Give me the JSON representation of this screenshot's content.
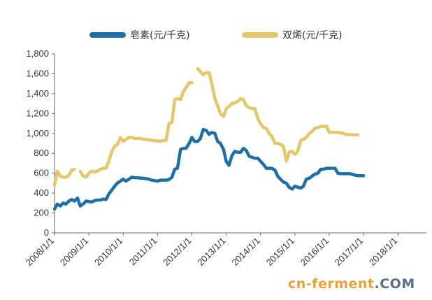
{
  "chart_data": {
    "type": "line",
    "legend_position": "top",
    "ylim": [
      0,
      1800
    ],
    "yticks": [
      "0",
      "200",
      "400",
      "600",
      "800",
      "1,000",
      "1,200",
      "1,400",
      "1,600",
      "1,800"
    ],
    "x_tick_labels": [
      "2008/1/1",
      "2009/1/1",
      "2010/1/1",
      "2011/1/1",
      "2012/1/1",
      "2013/1/1",
      "2014/1/1",
      "2015/1/1",
      "2016/1/1",
      "2017/1/1",
      "2018/1/1"
    ],
    "x_start": 2008.0,
    "x_end": 2018.83,
    "series": [
      {
        "name": "皂素(元/千克)",
        "color": "#1f6fa7",
        "points": [
          [
            2008.0,
            240
          ],
          [
            2008.08,
            290
          ],
          [
            2008.17,
            270
          ],
          [
            2008.25,
            300
          ],
          [
            2008.33,
            290
          ],
          [
            2008.42,
            320
          ],
          [
            2008.5,
            335
          ],
          [
            2008.58,
            320
          ],
          [
            2008.67,
            350
          ],
          [
            2008.75,
            270
          ],
          [
            2008.83,
            290
          ],
          [
            2008.92,
            320
          ],
          [
            2009.0,
            315
          ],
          [
            2009.08,
            310
          ],
          [
            2009.17,
            325
          ],
          [
            2009.25,
            330
          ],
          [
            2009.33,
            330
          ],
          [
            2009.42,
            340
          ],
          [
            2009.5,
            335
          ],
          [
            2009.58,
            390
          ],
          [
            2009.67,
            430
          ],
          [
            2009.75,
            470
          ],
          [
            2009.83,
            500
          ],
          [
            2009.92,
            520
          ],
          [
            2010.0,
            540
          ],
          [
            2010.08,
            520
          ],
          [
            2010.17,
            540
          ],
          [
            2010.25,
            560
          ],
          [
            2010.33,
            555
          ],
          [
            2010.42,
            555
          ],
          [
            2010.5,
            550
          ],
          [
            2010.58,
            550
          ],
          [
            2010.67,
            545
          ],
          [
            2010.75,
            540
          ],
          [
            2010.83,
            530
          ],
          [
            2010.92,
            525
          ],
          [
            2011.0,
            520
          ],
          [
            2011.08,
            530
          ],
          [
            2011.17,
            530
          ],
          [
            2011.25,
            530
          ],
          [
            2011.33,
            535
          ],
          [
            2011.42,
            560
          ],
          [
            2011.5,
            640
          ],
          [
            2011.58,
            650
          ],
          [
            2011.67,
            840
          ],
          [
            2011.75,
            850
          ],
          [
            2011.83,
            850
          ],
          [
            2011.92,
            900
          ],
          [
            2012.0,
            960
          ],
          [
            2012.08,
            920
          ],
          [
            2012.17,
            920
          ],
          [
            2012.25,
            950
          ],
          [
            2012.33,
            1040
          ],
          [
            2012.42,
            1030
          ],
          [
            2012.5,
            990
          ],
          [
            2012.58,
            1010
          ],
          [
            2012.67,
            1000
          ],
          [
            2012.75,
            920
          ],
          [
            2012.83,
            900
          ],
          [
            2012.92,
            840
          ],
          [
            2013.0,
            720
          ],
          [
            2013.08,
            680
          ],
          [
            2013.17,
            780
          ],
          [
            2013.25,
            820
          ],
          [
            2013.33,
            810
          ],
          [
            2013.42,
            810
          ],
          [
            2013.5,
            850
          ],
          [
            2013.58,
            830
          ],
          [
            2013.67,
            770
          ],
          [
            2013.75,
            760
          ],
          [
            2013.83,
            750
          ],
          [
            2013.92,
            750
          ],
          [
            2014.0,
            720
          ],
          [
            2014.08,
            690
          ],
          [
            2014.17,
            650
          ],
          [
            2014.25,
            650
          ],
          [
            2014.33,
            650
          ],
          [
            2014.42,
            630
          ],
          [
            2014.5,
            570
          ],
          [
            2014.58,
            540
          ],
          [
            2014.67,
            510
          ],
          [
            2014.75,
            500
          ],
          [
            2014.83,
            460
          ],
          [
            2014.92,
            440
          ],
          [
            2015.0,
            470
          ],
          [
            2015.08,
            460
          ],
          [
            2015.17,
            450
          ],
          [
            2015.25,
            470
          ],
          [
            2015.33,
            540
          ],
          [
            2015.42,
            550
          ],
          [
            2015.5,
            570
          ],
          [
            2015.58,
            590
          ],
          [
            2015.67,
            600
          ],
          [
            2015.75,
            640
          ],
          [
            2015.83,
            640
          ],
          [
            2015.92,
            650
          ],
          [
            2016.0,
            650
          ],
          [
            2016.08,
            650
          ],
          [
            2016.17,
            650
          ],
          [
            2016.25,
            600
          ],
          [
            2016.33,
            595
          ],
          [
            2016.42,
            595
          ],
          [
            2016.5,
            595
          ],
          [
            2016.58,
            595
          ],
          [
            2016.67,
            590
          ],
          [
            2016.75,
            580
          ],
          [
            2016.83,
            575
          ],
          [
            2016.92,
            575
          ],
          [
            2017.0,
            575
          ]
        ]
      },
      {
        "name": "双烯(元/千克)",
        "color": "#e3c76b",
        "points": [
          [
            2008.0,
            480
          ],
          [
            2008.08,
            620
          ],
          [
            2008.17,
            570
          ],
          [
            2008.25,
            560
          ],
          [
            2008.33,
            560
          ],
          [
            2008.42,
            580
          ],
          [
            2008.5,
            630
          ],
          [
            2008.58,
            640
          ],
          null,
          [
            2008.75,
            620
          ],
          [
            2008.83,
            570
          ],
          [
            2008.92,
            560
          ],
          [
            2009.0,
            600
          ],
          [
            2009.08,
            620
          ],
          [
            2009.17,
            610
          ],
          [
            2009.25,
            620
          ],
          [
            2009.33,
            640
          ],
          [
            2009.42,
            650
          ],
          [
            2009.5,
            650
          ],
          [
            2009.58,
            720
          ],
          [
            2009.67,
            820
          ],
          [
            2009.75,
            870
          ],
          [
            2009.83,
            890
          ],
          [
            2009.92,
            960
          ],
          [
            2010.0,
            920
          ],
          [
            2010.08,
            940
          ],
          [
            2010.17,
            960
          ],
          [
            2010.25,
            960
          ],
          [
            2010.33,
            950
          ],
          [
            2010.42,
            950
          ],
          [
            2010.5,
            950
          ],
          [
            2010.58,
            940
          ],
          [
            2010.67,
            940
          ],
          [
            2010.75,
            935
          ],
          [
            2010.83,
            930
          ],
          [
            2010.92,
            925
          ],
          [
            2011.0,
            925
          ],
          [
            2011.08,
            920
          ],
          [
            2011.17,
            930
          ],
          [
            2011.25,
            930
          ],
          [
            2011.33,
            1100
          ],
          [
            2011.42,
            1110
          ],
          [
            2011.5,
            1340
          ],
          [
            2011.58,
            1350
          ],
          [
            2011.67,
            1340
          ],
          [
            2011.75,
            1420
          ],
          [
            2011.83,
            1460
          ],
          [
            2011.92,
            1510
          ],
          [
            2012.0,
            1510
          ],
          null,
          [
            2012.17,
            1650
          ],
          [
            2012.25,
            1620
          ],
          [
            2012.33,
            1590
          ],
          [
            2012.42,
            1610
          ],
          [
            2012.5,
            1610
          ],
          [
            2012.58,
            1500
          ],
          [
            2012.67,
            1350
          ],
          [
            2012.75,
            1280
          ],
          [
            2012.83,
            1200
          ],
          [
            2012.92,
            1170
          ],
          [
            2013.0,
            1250
          ],
          [
            2013.08,
            1270
          ],
          [
            2013.17,
            1300
          ],
          [
            2013.25,
            1310
          ],
          [
            2013.33,
            1320
          ],
          [
            2013.42,
            1350
          ],
          [
            2013.5,
            1340
          ],
          [
            2013.58,
            1280
          ],
          [
            2013.67,
            1260
          ],
          [
            2013.75,
            1250
          ],
          [
            2013.83,
            1250
          ],
          [
            2013.92,
            1150
          ],
          [
            2014.0,
            1100
          ],
          [
            2014.08,
            1060
          ],
          [
            2014.17,
            1050
          ],
          [
            2014.25,
            1000
          ],
          [
            2014.33,
            970
          ],
          [
            2014.42,
            900
          ],
          [
            2014.5,
            900
          ],
          [
            2014.58,
            890
          ],
          [
            2014.67,
            870
          ],
          [
            2014.75,
            720
          ],
          [
            2014.83,
            810
          ],
          [
            2014.92,
            820
          ],
          [
            2015.0,
            790
          ],
          [
            2015.08,
            820
          ],
          [
            2015.17,
            930
          ],
          [
            2015.25,
            940
          ],
          [
            2015.33,
            960
          ],
          [
            2015.42,
            1000
          ],
          [
            2015.5,
            1020
          ],
          [
            2015.58,
            1050
          ],
          [
            2015.67,
            1060
          ],
          [
            2015.75,
            1070
          ],
          [
            2015.83,
            1070
          ],
          [
            2015.92,
            1070
          ],
          [
            2016.0,
            1010
          ],
          [
            2016.08,
            1010
          ],
          [
            2016.17,
            1010
          ],
          [
            2016.25,
            1010
          ],
          [
            2016.33,
            1005
          ],
          [
            2016.42,
            1000
          ],
          [
            2016.5,
            990
          ],
          [
            2016.58,
            990
          ],
          [
            2016.67,
            985
          ],
          [
            2016.75,
            985
          ],
          [
            2016.83,
            985
          ]
        ]
      }
    ]
  },
  "watermark": {
    "part1": "cn-ferment",
    "part2": ".COM"
  }
}
